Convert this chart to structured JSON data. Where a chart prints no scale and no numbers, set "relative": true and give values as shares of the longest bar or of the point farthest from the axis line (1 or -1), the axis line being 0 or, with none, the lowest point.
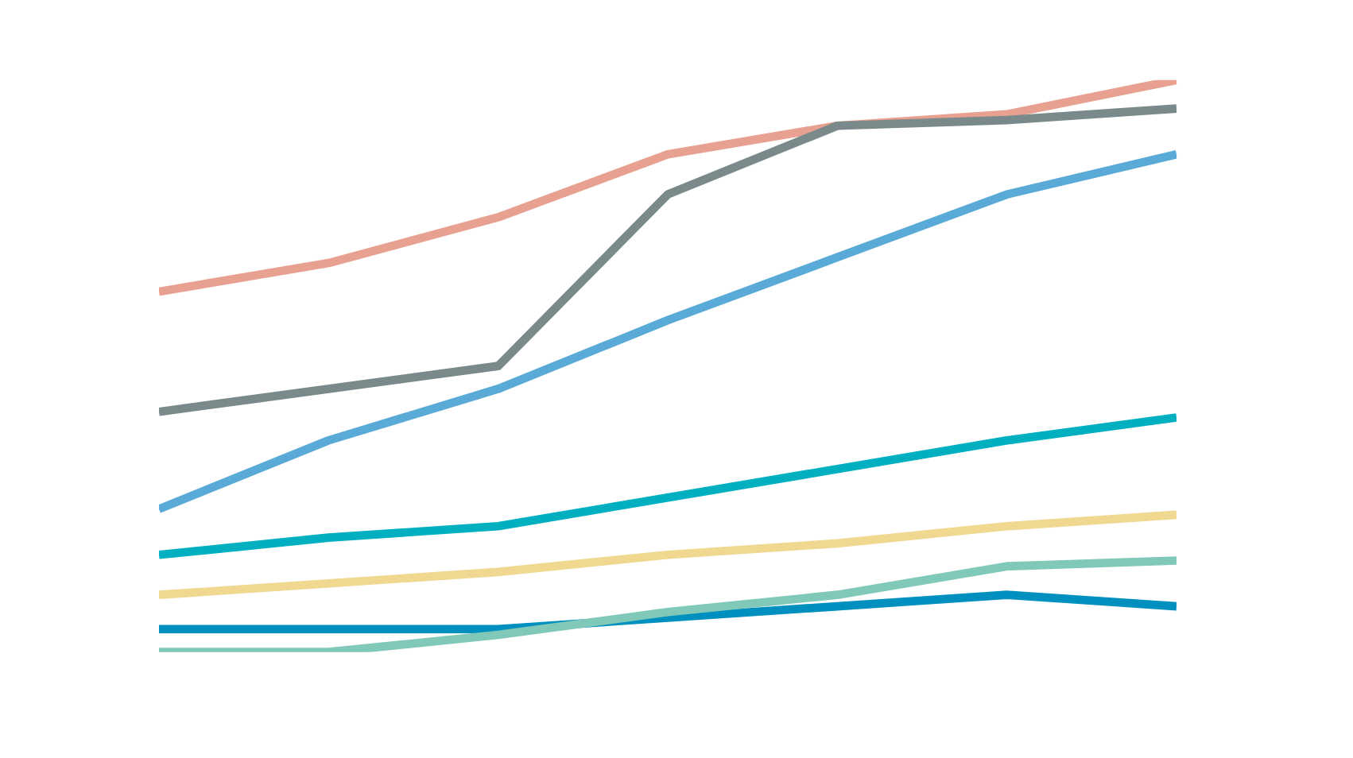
{
  "chart_data": {
    "type": "line",
    "relative": true,
    "categories": [
      null,
      null,
      null,
      null,
      null,
      null,
      null
    ],
    "series": [
      {
        "color": "#e8a090",
        "values": [
          0.63,
          0.68,
          0.76,
          0.87,
          0.92,
          0.94,
          1.0
        ]
      },
      {
        "color": "#7a8a8a",
        "values": [
          0.42,
          0.46,
          0.5,
          0.8,
          0.92,
          0.93,
          0.95
        ]
      },
      {
        "color": "#5aaad8",
        "values": [
          0.25,
          0.37,
          0.46,
          0.58,
          0.69,
          0.8,
          0.87
        ]
      },
      {
        "color": "#00b0c0",
        "values": [
          0.17,
          0.2,
          0.22,
          0.27,
          0.32,
          0.37,
          0.41
        ]
      },
      {
        "color": "#f0d890",
        "values": [
          0.1,
          0.12,
          0.14,
          0.17,
          0.19,
          0.22,
          0.24
        ]
      },
      {
        "color": "#0090c0",
        "values": [
          0.04,
          0.04,
          0.04,
          0.06,
          0.08,
          0.1,
          0.08
        ]
      },
      {
        "color": "#80c8b8",
        "values": [
          0,
          0,
          0.03,
          0.07,
          0.1,
          0.15,
          0.16
        ]
      }
    ]
  }
}
